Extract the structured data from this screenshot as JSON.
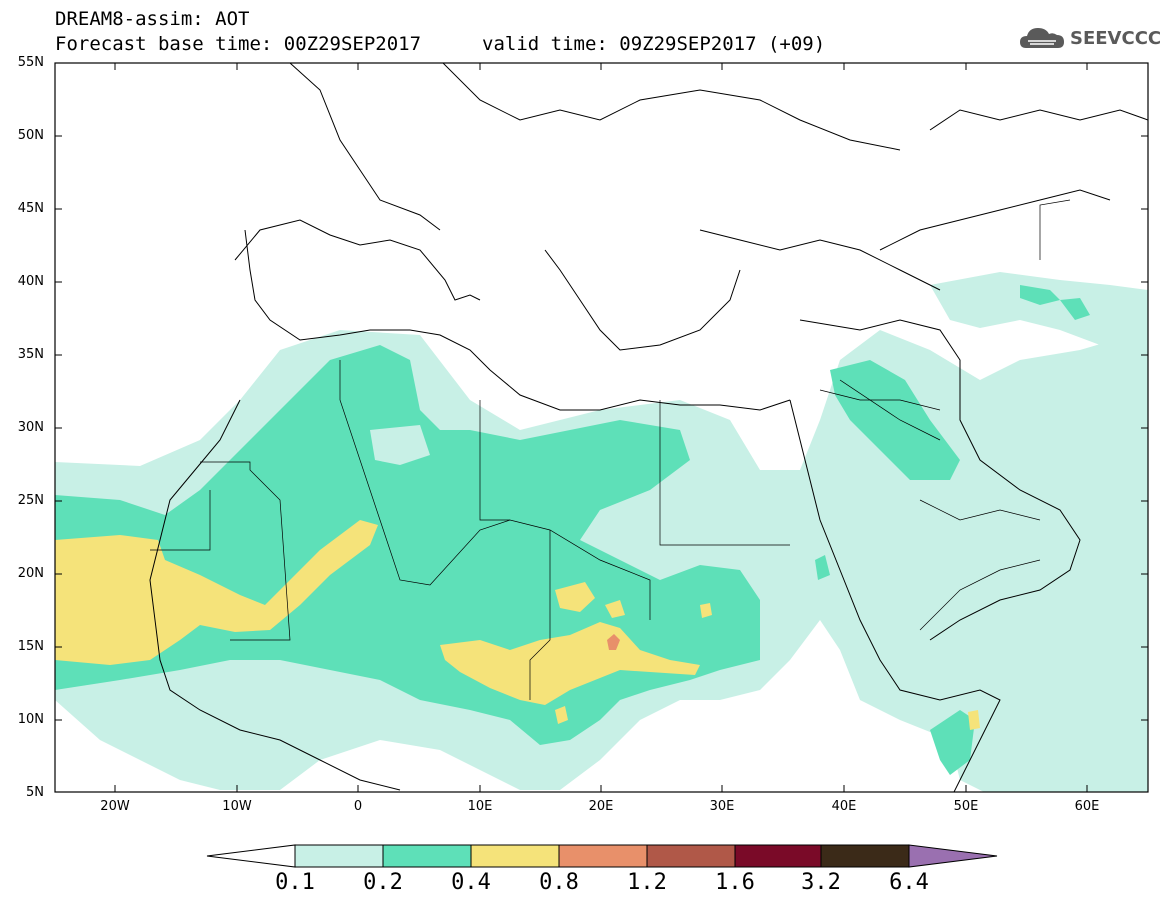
{
  "title": {
    "line1": "DREAM8-assim: AOT",
    "line2": "Forecast base time: 00Z29SEP2017",
    "valid": "valid time: 09Z29SEP2017 (+09)"
  },
  "logo": {
    "text": "SEEVCCC",
    "icon": "cloud-icon"
  },
  "map": {
    "lat_labels": [
      "55N",
      "50N",
      "45N",
      "40N",
      "35N",
      "30N",
      "25N",
      "20N",
      "15N",
      "10N",
      "5N"
    ],
    "lon_labels": [
      "20W",
      "10W",
      "0",
      "10E",
      "20E",
      "30E",
      "40E",
      "50E",
      "60E"
    ],
    "extent": {
      "lon_min": -25,
      "lon_max": 65,
      "lat_min": 5,
      "lat_max": 55
    }
  },
  "colorbar": {
    "levels": [
      "0.1",
      "0.2",
      "0.4",
      "0.8",
      "1.2",
      "1.6",
      "3.2",
      "6.4"
    ],
    "colors": [
      "#c8f0e6",
      "#5ee0b8",
      "#f5e37a",
      "#e8906a",
      "#b05848",
      "#7a0a28",
      "#3b2a18",
      "#9a70b0"
    ],
    "below_color": "#ffffff"
  },
  "colors": {
    "very_low": "#c8f0e6",
    "low": "#5ee0b8",
    "medium": "#f5e37a",
    "high": "#e8906a"
  }
}
